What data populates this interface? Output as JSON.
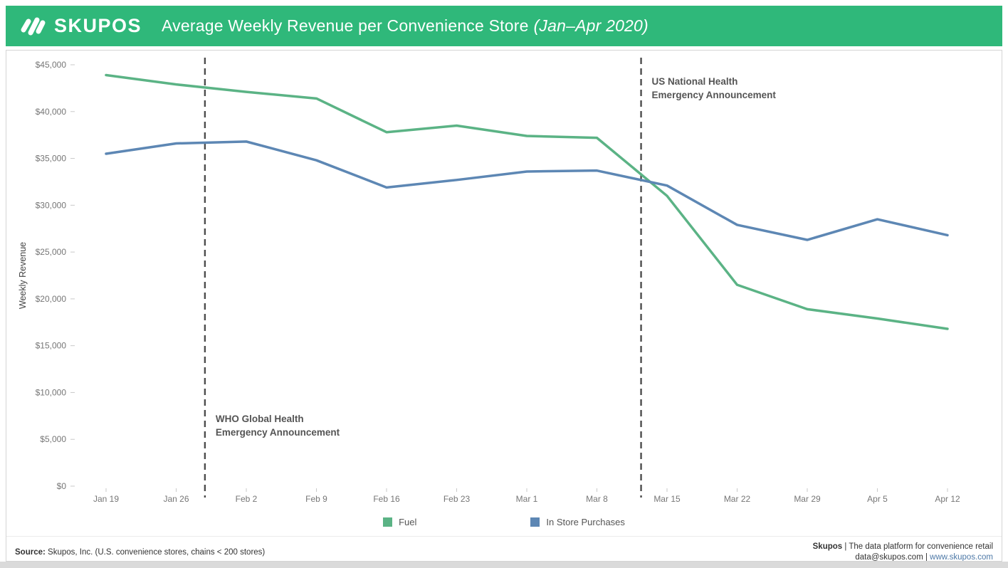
{
  "header": {
    "logo_text": "SKUPOS",
    "title": "Average Weekly Revenue per Convenience Store",
    "title_suffix": "(Jan–Apr 2020)",
    "background": "#2fb87a"
  },
  "chart_data": {
    "type": "line",
    "title": "Average Weekly Revenue per Convenience Store (Jan–Apr 2020)",
    "ylabel": "Weekly Revenue",
    "xlabel": "",
    "ylim": [
      0,
      45000
    ],
    "ytick_interval": 5000,
    "ytick_labels": [
      "$0",
      "$5,000",
      "$10,000",
      "$15,000",
      "$20,000",
      "$25,000",
      "$30,000",
      "$35,000",
      "$40,000",
      "$45,000"
    ],
    "grid": false,
    "legend_position": "bottom",
    "categories": [
      "Jan 19",
      "Jan 26",
      "Feb 2",
      "Feb 9",
      "Feb 16",
      "Feb 23",
      "Mar 1",
      "Mar 8",
      "Mar 15",
      "Mar 22",
      "Mar 29",
      "Apr 5",
      "Apr 12"
    ],
    "series": [
      {
        "name": "Fuel",
        "color": "#5bb385",
        "values": [
          43900,
          42900,
          42100,
          41400,
          37800,
          38500,
          37400,
          37200,
          31000,
          21500,
          18900,
          17900,
          16800
        ]
      },
      {
        "name": "In Store Purchases",
        "color": "#5d87b4",
        "values": [
          35500,
          36600,
          36800,
          34800,
          31900,
          32700,
          33600,
          33700,
          32100,
          27900,
          26300,
          28500,
          26800
        ]
      }
    ],
    "annotations": [
      {
        "label_lines": [
          "WHO Global Health",
          "Emergency Announcement"
        ],
        "x_index": 1.41,
        "label_position": "bottom"
      },
      {
        "label_lines": [
          "US National Health",
          "Emergency Announcement"
        ],
        "x_index": 7.63,
        "label_position": "top"
      }
    ],
    "annotation_line_color": "#4d4d4d",
    "axis_text_color": "#767676",
    "annotation_text_color": "#545454"
  },
  "legend": {
    "items": [
      {
        "label": "Fuel",
        "color": "#5bb385"
      },
      {
        "label": "In Store Purchases",
        "color": "#5d87b4"
      }
    ]
  },
  "footer": {
    "source_label": "Source:",
    "source_text": " Skupos, Inc. (U.S. convenience stores, chains < 200 stores)",
    "right_line1_bold": "Skupos",
    "right_line1_rest": " | The data platform for convenience retail",
    "right_line2_plain": "data@skupos.com | ",
    "right_line2_link": "www.skupos.com"
  }
}
